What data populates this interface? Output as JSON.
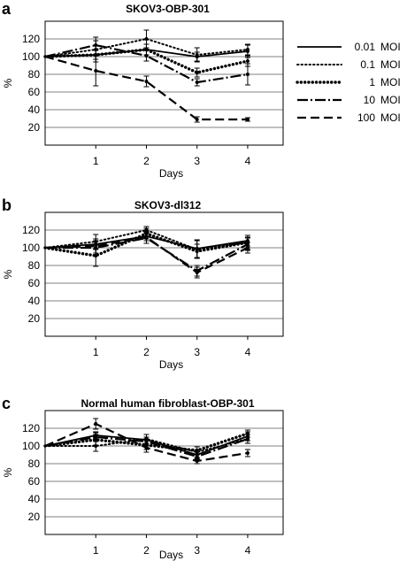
{
  "chart_data": [
    {
      "type": "line",
      "panel_label": "a",
      "title": "SKOV3-OBP-301",
      "xlabel": "Days",
      "ylabel": "%",
      "x": [
        0,
        1,
        2,
        3,
        4
      ],
      "x_tick_labels": [
        "1",
        "2",
        "3",
        "4"
      ],
      "ylim": [
        0,
        140
      ],
      "y_ticks": [
        20,
        40,
        60,
        80,
        100,
        120
      ],
      "grid": "horizontal",
      "series": [
        {
          "name": "0.01 MOI",
          "values": [
            100,
            102,
            108,
            100,
            106
          ],
          "errors": [
            0,
            0,
            6,
            5,
            7
          ]
        },
        {
          "name": "0.1 MOI",
          "values": [
            100,
            108,
            120,
            102,
            108
          ],
          "errors": [
            0,
            14,
            10,
            8,
            6
          ]
        },
        {
          "name": "1 MOI",
          "values": [
            100,
            102,
            108,
            82,
            95
          ],
          "errors": [
            0,
            5,
            6,
            5,
            6
          ]
        },
        {
          "name": "10 MOI",
          "values": [
            100,
            113,
            101,
            71,
            80
          ],
          "errors": [
            0,
            5,
            6,
            4,
            12
          ]
        },
        {
          "name": "100 MOI",
          "values": [
            100,
            84,
            72,
            29,
            29
          ],
          "errors": [
            0,
            17,
            6,
            3,
            2
          ]
        }
      ]
    },
    {
      "type": "line",
      "panel_label": "b",
      "title": "SKOV3-dl312",
      "xlabel": "Days",
      "ylabel": "%",
      "x": [
        0,
        1,
        2,
        3,
        4
      ],
      "x_tick_labels": [
        "1",
        "2",
        "3",
        "4"
      ],
      "ylim": [
        0,
        140
      ],
      "y_ticks": [
        20,
        40,
        60,
        80,
        100,
        120
      ],
      "grid": "horizontal",
      "series": [
        {
          "name": "0.01 MOI",
          "values": [
            100,
            104,
            113,
            99,
            108
          ],
          "errors": [
            0,
            6,
            5,
            10,
            6
          ]
        },
        {
          "name": "0.1 MOI",
          "values": [
            100,
            107,
            120,
            98,
            106
          ],
          "errors": [
            0,
            8,
            4,
            10,
            6
          ]
        },
        {
          "name": "1 MOI",
          "values": [
            100,
            91,
            116,
            96,
            106
          ],
          "errors": [
            0,
            12,
            6,
            8,
            8
          ]
        },
        {
          "name": "10 MOI",
          "values": [
            100,
            100,
            111,
            74,
            104
          ],
          "errors": [
            0,
            8,
            6,
            6,
            7
          ]
        },
        {
          "name": "100 MOI",
          "values": [
            100,
            102,
            112,
            72,
            100
          ],
          "errors": [
            0,
            8,
            7,
            6,
            6
          ]
        }
      ]
    },
    {
      "type": "line",
      "panel_label": "c",
      "title": "Normal human fibroblast-OBP-301",
      "xlabel": "Days",
      "ylabel": "%",
      "x": [
        0,
        1,
        2,
        3,
        4
      ],
      "x_tick_labels": [
        "1",
        "2",
        "3",
        "4"
      ],
      "ylim": [
        0,
        140
      ],
      "y_ticks": [
        20,
        40,
        60,
        80,
        100,
        120
      ],
      "grid": "horizontal",
      "series": [
        {
          "name": "0.01 MOI",
          "values": [
            100,
            112,
            107,
            90,
            111
          ],
          "errors": [
            0,
            4,
            6,
            3,
            5
          ]
        },
        {
          "name": "0.1 MOI",
          "values": [
            100,
            100,
            108,
            93,
            108
          ],
          "errors": [
            0,
            6,
            5,
            3,
            5
          ]
        },
        {
          "name": "1 MOI",
          "values": [
            100,
            107,
            101,
            95,
            114
          ],
          "errors": [
            0,
            6,
            5,
            4,
            4
          ]
        },
        {
          "name": "10 MOI",
          "values": [
            100,
            110,
            105,
            88,
            108
          ],
          "errors": [
            0,
            5,
            5,
            3,
            5
          ]
        },
        {
          "name": "100 MOI",
          "values": [
            100,
            125,
            98,
            83,
            92
          ],
          "errors": [
            0,
            6,
            5,
            3,
            4
          ]
        }
      ]
    }
  ],
  "legend": {
    "placement": "right of top panel",
    "entries": [
      {
        "name": "0.01 MOI",
        "style": "solid"
      },
      {
        "name": "0.1 MOI",
        "style": "dotted-fine"
      },
      {
        "name": "1 MOI",
        "style": "dotted-bold"
      },
      {
        "name": "10 MOI",
        "style": "dash-dot"
      },
      {
        "name": "100 MOI",
        "style": "dashed"
      }
    ]
  },
  "line_color": "#000000",
  "grid_color": "#808080"
}
